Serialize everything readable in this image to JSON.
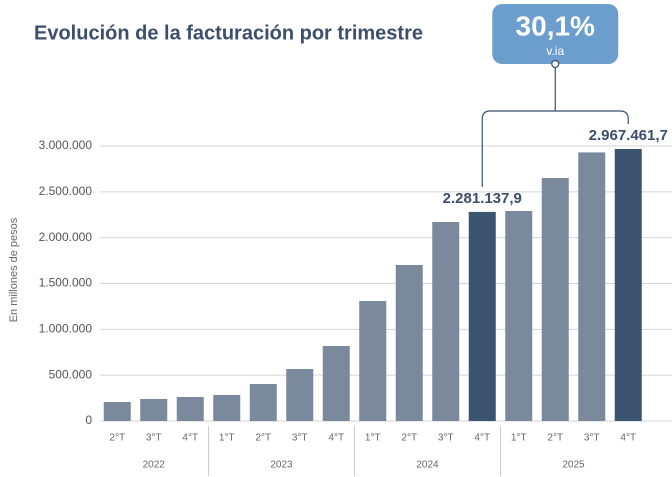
{
  "chart_data": {
    "type": "bar",
    "title": "Evolución de la facturación por trimestre",
    "y_label": "En millones de pesos",
    "groups": [
      {
        "label": "2022",
        "categories": [
          "2°T",
          "3°T",
          "4°T"
        ]
      },
      {
        "label": "2023",
        "categories": [
          "1°T",
          "2°T",
          "3°T",
          "4°T"
        ]
      },
      {
        "label": "2024",
        "categories": [
          "1°T",
          "2°T",
          "3°T",
          "4°T"
        ]
      },
      {
        "label": "2025",
        "categories": [
          "1°T",
          "2°T",
          "3°T",
          "4°T"
        ]
      }
    ],
    "values": [
      207000,
      240000,
      262000,
      284000,
      404000,
      567000,
      818000,
      1309000,
      1702000,
      2171000,
      2281137.9,
      2291000,
      2651000,
      2930000,
      2967461.7
    ],
    "value_labels": [
      null,
      null,
      null,
      null,
      null,
      null,
      null,
      null,
      null,
      null,
      "2.281.137,9",
      null,
      null,
      null,
      "2.967.461,7"
    ],
    "colors": [
      "#7a899c",
      "#7a899c",
      "#7a899c",
      "#7a899c",
      "#7a899c",
      "#7a899c",
      "#7a899c",
      "#7a899c",
      "#7a899c",
      "#7a899c",
      "#3b546f",
      "#7a899c",
      "#7a899c",
      "#7a899c",
      "#3b546f"
    ],
    "ylim": [
      0,
      3000000
    ],
    "yticks": [
      0,
      {
        "value": 500000,
        "label": "500.000"
      },
      {
        "value": 1000000,
        "label": "1.000.000"
      },
      {
        "value": 1500000,
        "label": "1.500.000"
      },
      {
        "value": 2000000,
        "label": "2.000.000"
      },
      {
        "value": 2500000,
        "label": "2.500.000"
      },
      {
        "value": 3000000,
        "label": "3.000.000"
      }
    ],
    "grid": true,
    "annotation": {
      "text": "30,1%",
      "subtext": "v.ia",
      "color": "#6b9dcd"
    }
  }
}
